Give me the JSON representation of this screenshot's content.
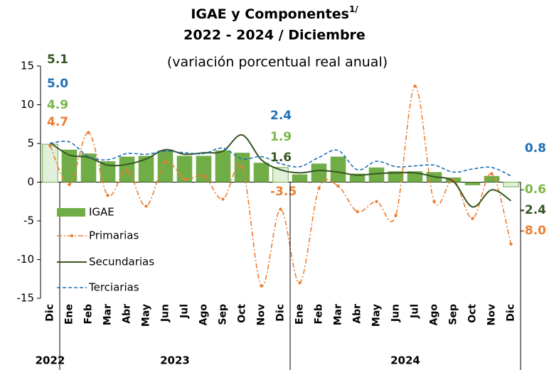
{
  "chart_data": {
    "type": "bar_line",
    "title": "IGAE y Componentes",
    "title_superscript": "1/",
    "title_line2": "2022 - 2024 / Diciembre",
    "subtitle": "(variación porcentual real anual)",
    "categories": [
      "Dic",
      "Ene",
      "Feb",
      "Mar",
      "Abr",
      "May",
      "Jun",
      "Jul",
      "Ago",
      "Sep",
      "Oct",
      "Nov",
      "Dic",
      "Ene",
      "Feb",
      "Mar",
      "Abr",
      "May",
      "Jun",
      "Jul",
      "Ago",
      "Sep",
      "Oct",
      "Nov",
      "Dic"
    ],
    "years": [
      {
        "label": "2022",
        "start": 0,
        "end": 0
      },
      {
        "label": "2023",
        "start": 1,
        "end": 12
      },
      {
        "label": "2024",
        "start": 13,
        "end": 24
      }
    ],
    "ylim": [
      -15,
      15
    ],
    "yticks": [
      15,
      10,
      5,
      0,
      -5,
      -10,
      -15
    ],
    "highlight_color": "#e2efda",
    "series": [
      {
        "name": "IGAE",
        "kind": "bar",
        "color": "#70ad47",
        "label_color": "#7ab648",
        "values": [
          4.9,
          4.2,
          3.7,
          2.7,
          3.3,
          3.4,
          4.1,
          3.4,
          3.4,
          4.1,
          3.8,
          2.5,
          1.9,
          1.0,
          2.4,
          3.3,
          1.1,
          1.9,
          1.4,
          1.4,
          1.3,
          0.6,
          -0.4,
          0.8,
          -0.6
        ],
        "value_labels": [
          "4.9",
          null,
          null,
          null,
          null,
          null,
          null,
          null,
          null,
          null,
          null,
          null,
          "1.9",
          null,
          null,
          null,
          null,
          null,
          null,
          null,
          null,
          null,
          null,
          null,
          "-0.6"
        ]
      },
      {
        "name": "Primarias",
        "kind": "dashdot",
        "color": "#ed7d31",
        "label_color": "#ed7d31",
        "values": [
          4.7,
          -0.3,
          6.4,
          -1.7,
          1.5,
          -3.1,
          2.6,
          0.4,
          0.8,
          -2.2,
          2.0,
          -13.4,
          -3.5,
          -13.0,
          -0.8,
          -0.5,
          -3.8,
          -2.5,
          -4.3,
          12.4,
          -2.5,
          0.3,
          -4.7,
          1.1,
          -8.0
        ],
        "value_labels": [
          "4.7",
          null,
          null,
          null,
          null,
          null,
          null,
          null,
          null,
          null,
          null,
          null,
          "-3.5",
          null,
          null,
          null,
          null,
          null,
          null,
          null,
          null,
          null,
          null,
          null,
          "-8.0"
        ]
      },
      {
        "name": "Secundarias",
        "kind": "solid",
        "color": "#375623",
        "label_color": "#375623",
        "values": [
          5.1,
          3.5,
          3.2,
          2.2,
          2.3,
          3.0,
          4.2,
          3.6,
          3.8,
          4.0,
          6.1,
          2.9,
          1.6,
          1.2,
          1.5,
          1.3,
          0.9,
          1.1,
          1.2,
          1.2,
          0.7,
          0.1,
          -3.2,
          -1.0,
          -2.4
        ],
        "value_labels": [
          "5.1",
          null,
          null,
          null,
          null,
          null,
          null,
          null,
          null,
          null,
          null,
          null,
          "1.6",
          null,
          null,
          null,
          null,
          null,
          null,
          null,
          null,
          null,
          null,
          null,
          "-2.4"
        ]
      },
      {
        "name": "Terciarias",
        "kind": "dashed",
        "color": "#1f6fb5",
        "label_color": "#1f6fb5",
        "values": [
          5.0,
          5.2,
          3.3,
          2.9,
          3.7,
          3.6,
          4.0,
          3.8,
          3.7,
          4.4,
          3.0,
          3.3,
          2.4,
          2.0,
          3.2,
          4.1,
          1.6,
          2.7,
          2.0,
          2.1,
          2.2,
          1.3,
          1.7,
          1.9,
          0.8
        ],
        "value_labels": [
          "5.0",
          null,
          null,
          null,
          null,
          null,
          null,
          null,
          null,
          null,
          null,
          null,
          "2.4",
          null,
          null,
          null,
          null,
          null,
          null,
          null,
          null,
          null,
          null,
          null,
          "0.8"
        ]
      }
    ]
  }
}
